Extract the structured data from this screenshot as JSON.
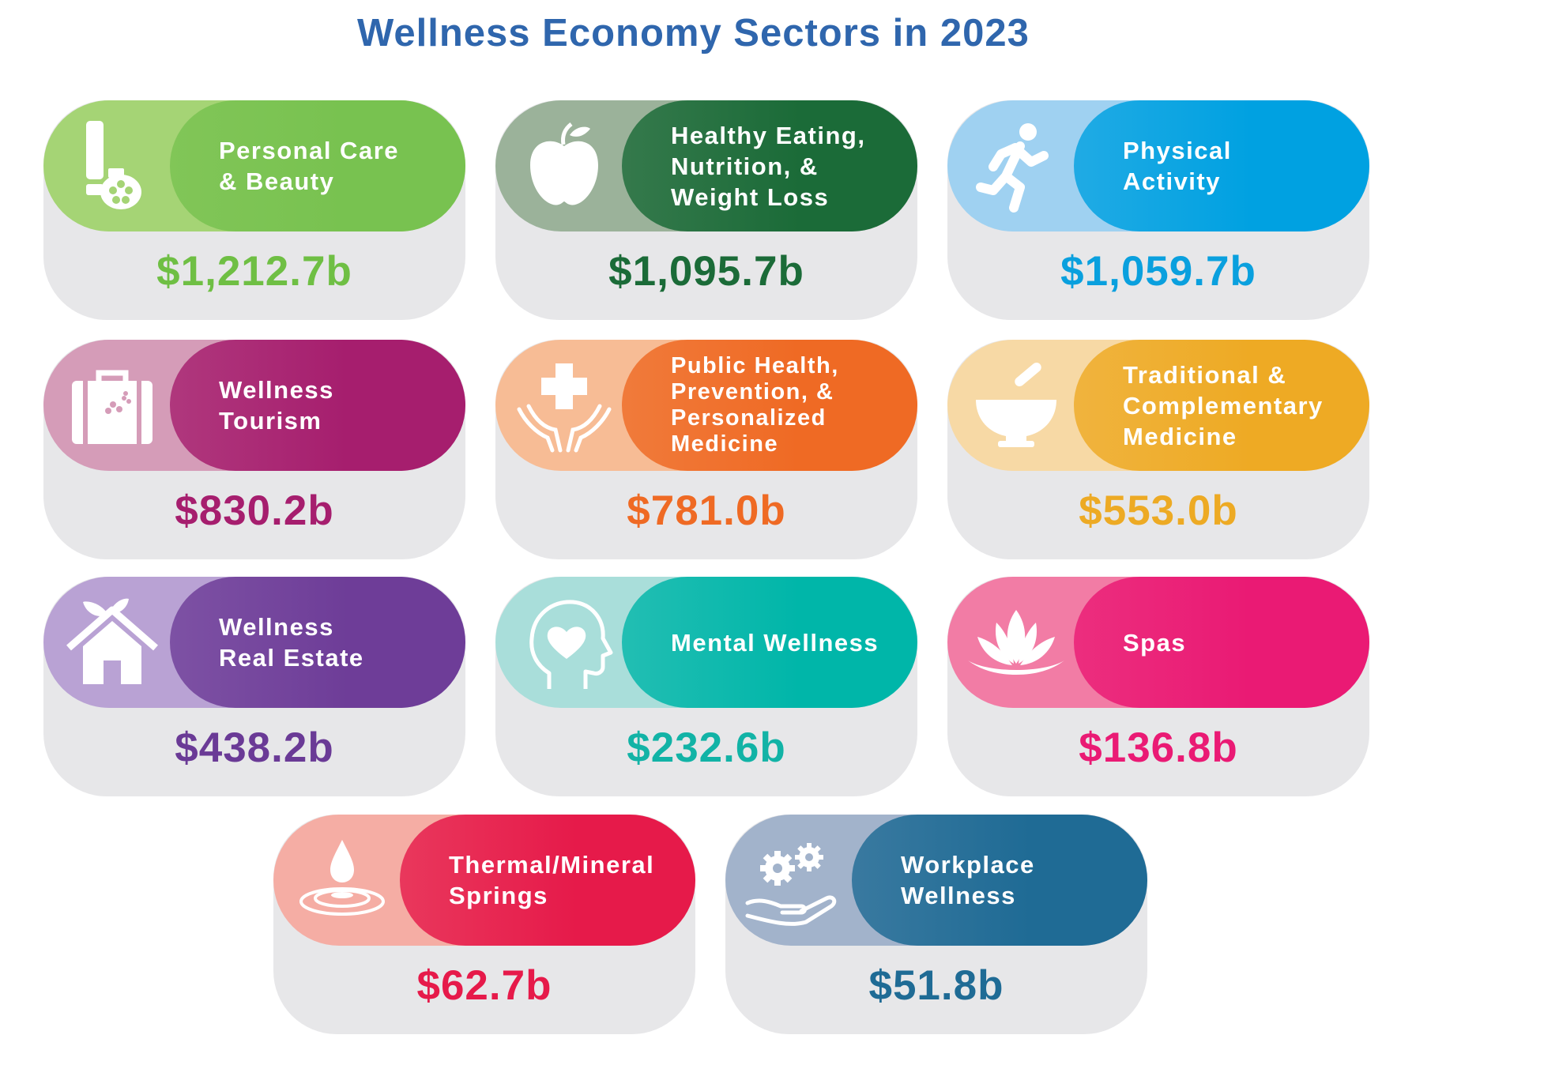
{
  "title": "Wellness Economy Sectors in 2023",
  "chart_data": {
    "type": "table",
    "title": "Wellness Economy Sectors in 2023",
    "unit": "billion USD",
    "categories": [
      "Personal Care & Beauty",
      "Healthy Eating, Nutrition, & Weight Loss",
      "Physical Activity",
      "Wellness Tourism",
      "Public Health, Prevention, & Personalized Medicine",
      "Traditional & Complementary Medicine",
      "Wellness Real Estate",
      "Mental Wellness",
      "Spas",
      "Thermal/Mineral Springs",
      "Workplace Wellness"
    ],
    "values": [
      1212.7,
      1095.7,
      1059.7,
      830.2,
      781.0,
      553.0,
      438.2,
      232.6,
      136.8,
      62.7,
      51.8
    ]
  },
  "sectors": [
    {
      "label": "Personal Care\n& Beauty",
      "value": "$1,212.7b",
      "icon": "lotion-bottle-icon",
      "light": "#a5d475",
      "dark": "#78c250",
      "text_color": "#6fbf44"
    },
    {
      "label": "Healthy Eating,\nNutrition, &\nWeight Loss",
      "value": "$1,095.7b",
      "icon": "apple-icon",
      "light": "#9bb29a",
      "dark": "#1b6b38",
      "text_color": "#1b6b38"
    },
    {
      "label": "Physical\nActivity",
      "value": "$1,059.7b",
      "icon": "running-person-icon",
      "light": "#9fd1f1",
      "dark": "#00a1e1",
      "text_color": "#0aa0de"
    },
    {
      "label": "Wellness\nTourism",
      "value": "$830.2b",
      "icon": "suitcase-icon",
      "light": "#d59cb8",
      "dark": "#a61e6e",
      "text_color": "#a61e6e"
    },
    {
      "label": "Public Health,\nPrevention, &\nPersonalized\nMedicine",
      "value": "$781.0b",
      "icon": "hands-cross-icon",
      "light": "#f7bc95",
      "dark": "#ef6a24",
      "text_color": "#ef6a24"
    },
    {
      "label": "Traditional &\nComplementary\nMedicine",
      "value": "$553.0b",
      "icon": "mortar-pestle-icon",
      "light": "#f7d9a5",
      "dark": "#eeaa24",
      "text_color": "#edaa24"
    },
    {
      "label": "Wellness\nReal Estate",
      "value": "$438.2b",
      "icon": "house-leaf-icon",
      "light": "#b9a2d4",
      "dark": "#6e3d98",
      "text_color": "#6a3a96"
    },
    {
      "label": "Mental Wellness",
      "value": "$232.6b",
      "icon": "head-heart-icon",
      "light": "#a9deda",
      "dark": "#00b6a9",
      "text_color": "#12b3a6"
    },
    {
      "label": "Spas",
      "value": "$136.8b",
      "icon": "lotus-icon",
      "light": "#f27ca5",
      "dark": "#ea1a74",
      "text_color": "#ea1a74"
    },
    {
      "label": "Thermal/Mineral\nSprings",
      "value": "$62.7b",
      "icon": "water-drop-icon",
      "light": "#f5ada4",
      "dark": "#e61a4a",
      "text_color": "#e61a4a"
    },
    {
      "label": "Workplace\nWellness",
      "value": "$51.8b",
      "icon": "gears-hand-icon",
      "light": "#a2b3cb",
      "dark": "#1f6b95",
      "text_color": "#1f6b95"
    }
  ]
}
